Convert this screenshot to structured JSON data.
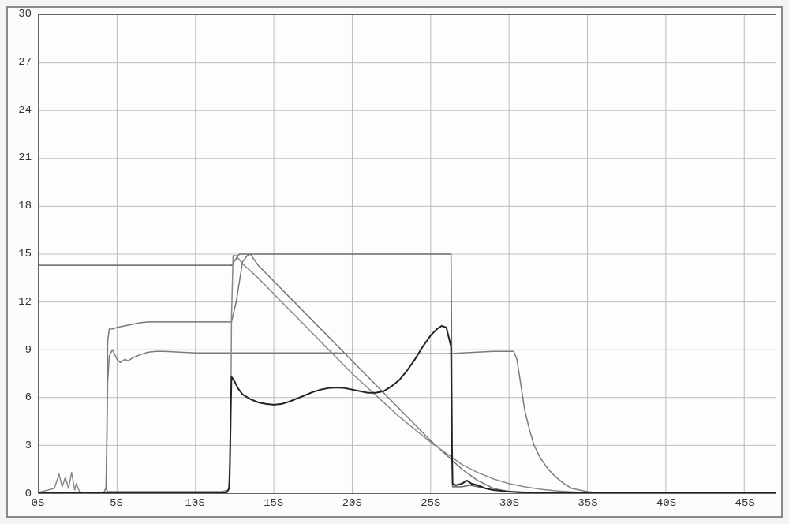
{
  "chart": {
    "type": "line",
    "background_color": "#fdfdfd",
    "outer_border_color": "#888888",
    "plot_border_color": "#666666",
    "grid_color": "#bbbbbb",
    "tick_font_family": "Courier New",
    "tick_fontsize": 14,
    "tick_color": "#333333",
    "xlim": [
      0,
      47
    ],
    "ylim": [
      0,
      30
    ],
    "yticks": [
      0,
      3,
      6,
      9,
      12,
      15,
      18,
      21,
      24,
      27,
      30
    ],
    "ytick_labels": [
      "0",
      "3",
      "6",
      "9",
      "12",
      "15",
      "18",
      "21",
      "24",
      "27",
      "30"
    ],
    "xticks": [
      0,
      5,
      10,
      15,
      20,
      25,
      30,
      35,
      40,
      45
    ],
    "xtick_labels": [
      "0S",
      "5S",
      "10S",
      "15S",
      "20S",
      "25S",
      "30S",
      "35S",
      "40S",
      "45S"
    ],
    "xtick_draws_grid": [
      false,
      true,
      true,
      true,
      true,
      true,
      true,
      true,
      true,
      true
    ],
    "series": [
      {
        "name": "line-flat-top",
        "color": "#666666",
        "width": 1.5,
        "points": [
          [
            0,
            14.3
          ],
          [
            1,
            14.3
          ],
          [
            2,
            14.3
          ],
          [
            3,
            14.3
          ],
          [
            4,
            14.3
          ],
          [
            5,
            14.3
          ],
          [
            6,
            14.3
          ],
          [
            7,
            14.3
          ],
          [
            8,
            14.3
          ],
          [
            9,
            14.3
          ],
          [
            10,
            14.3
          ],
          [
            11,
            14.3
          ],
          [
            11.5,
            14.3
          ],
          [
            12,
            14.3
          ],
          [
            12.3,
            14.3
          ],
          [
            12.8,
            15.0
          ],
          [
            13,
            15.0
          ],
          [
            14,
            15.0
          ],
          [
            15,
            15.0
          ],
          [
            16,
            15.0
          ],
          [
            17,
            15.0
          ],
          [
            18,
            15.0
          ],
          [
            19,
            15.0
          ],
          [
            20,
            15.0
          ],
          [
            21,
            15.0
          ],
          [
            22,
            15.0
          ],
          [
            23,
            15.0
          ],
          [
            24,
            15.0
          ],
          [
            25,
            15.0
          ],
          [
            25.8,
            15.0
          ],
          [
            26.3,
            15.0
          ],
          [
            26.4,
            0.4
          ],
          [
            27,
            0.4
          ],
          [
            27.5,
            0.5
          ],
          [
            28,
            0.4
          ],
          [
            28.5,
            0.3
          ],
          [
            29,
            0.2
          ],
          [
            30,
            0.1
          ],
          [
            31,
            0.05
          ],
          [
            32,
            0.02
          ],
          [
            33,
            0.0
          ],
          [
            35,
            0.0
          ],
          [
            40,
            0.0
          ],
          [
            47,
            0.0
          ]
        ]
      },
      {
        "name": "line-ramp-mid",
        "color": "#777777",
        "width": 1.5,
        "points": [
          [
            0,
            0
          ],
          [
            4,
            0
          ],
          [
            4.2,
            0.1
          ],
          [
            4.3,
            0.4
          ],
          [
            4.35,
            4.0
          ],
          [
            4.4,
            9.5
          ],
          [
            4.5,
            10.3
          ],
          [
            4.7,
            10.3
          ],
          [
            5,
            10.4
          ],
          [
            5.5,
            10.5
          ],
          [
            6,
            10.6
          ],
          [
            6.5,
            10.7
          ],
          [
            7,
            10.75
          ],
          [
            8,
            10.75
          ],
          [
            9,
            10.75
          ],
          [
            10,
            10.75
          ],
          [
            11,
            10.75
          ],
          [
            11.5,
            10.75
          ],
          [
            12,
            10.75
          ],
          [
            12.3,
            10.75
          ],
          [
            12.6,
            12.0
          ],
          [
            13.0,
            14.5
          ],
          [
            13.3,
            14.9
          ],
          [
            13.5,
            15.0
          ],
          [
            14,
            14.3
          ],
          [
            15,
            13.3
          ],
          [
            16,
            12.3
          ],
          [
            17,
            11.3
          ],
          [
            18,
            10.3
          ],
          [
            19,
            9.3
          ],
          [
            20,
            8.3
          ],
          [
            21,
            7.3
          ],
          [
            22,
            6.3
          ],
          [
            23,
            5.3
          ],
          [
            24,
            4.3
          ],
          [
            25,
            3.3
          ],
          [
            26,
            2.4
          ],
          [
            27,
            1.5
          ],
          [
            28,
            0.8
          ],
          [
            29,
            0.3
          ],
          [
            30,
            0.1
          ],
          [
            31,
            0.0
          ],
          [
            32,
            0.0
          ],
          [
            35,
            0.0
          ],
          [
            40,
            0.0
          ],
          [
            47,
            0.0
          ]
        ]
      },
      {
        "name": "line-flat-nine",
        "color": "#7a7a7a",
        "width": 1.5,
        "points": [
          [
            0,
            0
          ],
          [
            4,
            0
          ],
          [
            4.2,
            0.1
          ],
          [
            4.3,
            0.4
          ],
          [
            4.35,
            3.0
          ],
          [
            4.4,
            7.0
          ],
          [
            4.5,
            8.6
          ],
          [
            4.7,
            9.0
          ],
          [
            5,
            8.4
          ],
          [
            5.2,
            8.2
          ],
          [
            5.5,
            8.4
          ],
          [
            5.7,
            8.3
          ],
          [
            6,
            8.5
          ],
          [
            6.5,
            8.7
          ],
          [
            7,
            8.85
          ],
          [
            7.5,
            8.9
          ],
          [
            8,
            8.9
          ],
          [
            9,
            8.85
          ],
          [
            10,
            8.8
          ],
          [
            11,
            8.8
          ],
          [
            12,
            8.8
          ],
          [
            13,
            8.8
          ],
          [
            14,
            8.8
          ],
          [
            15,
            8.8
          ],
          [
            16,
            8.8
          ],
          [
            17,
            8.8
          ],
          [
            18,
            8.8
          ],
          [
            19,
            8.8
          ],
          [
            20,
            8.75
          ],
          [
            21,
            8.75
          ],
          [
            22,
            8.75
          ],
          [
            23,
            8.75
          ],
          [
            24,
            8.75
          ],
          [
            25,
            8.75
          ],
          [
            26,
            8.75
          ],
          [
            27,
            8.8
          ],
          [
            28,
            8.85
          ],
          [
            29,
            8.9
          ],
          [
            29.5,
            8.9
          ],
          [
            30,
            8.9
          ],
          [
            30.3,
            8.9
          ],
          [
            30.5,
            8.4
          ],
          [
            30.8,
            6.5
          ],
          [
            31,
            5.2
          ],
          [
            31.3,
            4.0
          ],
          [
            31.6,
            3.0
          ],
          [
            32,
            2.2
          ],
          [
            32.5,
            1.5
          ],
          [
            33,
            1.0
          ],
          [
            33.5,
            0.6
          ],
          [
            34,
            0.3
          ],
          [
            35,
            0.1
          ],
          [
            36,
            0.0
          ],
          [
            40,
            0.0
          ],
          [
            47,
            0.0
          ]
        ]
      },
      {
        "name": "line-decay-long",
        "color": "#888888",
        "width": 1.5,
        "points": [
          [
            0,
            0.05
          ],
          [
            1,
            0.3
          ],
          [
            1.3,
            1.2
          ],
          [
            1.5,
            0.4
          ],
          [
            1.7,
            1.0
          ],
          [
            1.9,
            0.3
          ],
          [
            2.1,
            1.3
          ],
          [
            2.3,
            0.2
          ],
          [
            2.4,
            0.6
          ],
          [
            2.6,
            0.1
          ],
          [
            3,
            0.0
          ],
          [
            4,
            0
          ],
          [
            4.2,
            0.1
          ],
          [
            4.3,
            0.3
          ],
          [
            4.4,
            0.1
          ],
          [
            5,
            0.1
          ],
          [
            8,
            0.1
          ],
          [
            11,
            0.1
          ],
          [
            11.7,
            0.1
          ],
          [
            12.1,
            0.2
          ],
          [
            12.2,
            1.0
          ],
          [
            12.25,
            4.0
          ],
          [
            12.3,
            11.0
          ],
          [
            12.4,
            14.9
          ],
          [
            12.5,
            14.9
          ],
          [
            12.6,
            14.9
          ],
          [
            13,
            14.4
          ],
          [
            14,
            13.5
          ],
          [
            15,
            12.5
          ],
          [
            16,
            11.5
          ],
          [
            17,
            10.5
          ],
          [
            18,
            9.5
          ],
          [
            19,
            8.5
          ],
          [
            20,
            7.5
          ],
          [
            21,
            6.6
          ],
          [
            22,
            5.7
          ],
          [
            23,
            4.8
          ],
          [
            24,
            4.0
          ],
          [
            25,
            3.2
          ],
          [
            26,
            2.5
          ],
          [
            27,
            1.8
          ],
          [
            28,
            1.3
          ],
          [
            29,
            0.9
          ],
          [
            30,
            0.6
          ],
          [
            31,
            0.4
          ],
          [
            32,
            0.25
          ],
          [
            33,
            0.15
          ],
          [
            34,
            0.08
          ],
          [
            35,
            0.04
          ],
          [
            36,
            0.0
          ],
          [
            40,
            0.0
          ],
          [
            47,
            0.0
          ]
        ]
      },
      {
        "name": "line-dark-burst",
        "color": "#222222",
        "width": 2,
        "points": [
          [
            0,
            0
          ],
          [
            5,
            0
          ],
          [
            11.7,
            0
          ],
          [
            12.0,
            0.05
          ],
          [
            12.15,
            0.3
          ],
          [
            12.2,
            2.0
          ],
          [
            12.25,
            5.0
          ],
          [
            12.3,
            7.3
          ],
          [
            12.5,
            7.0
          ],
          [
            12.7,
            6.6
          ],
          [
            13,
            6.2
          ],
          [
            13.5,
            5.9
          ],
          [
            14,
            5.7
          ],
          [
            14.5,
            5.6
          ],
          [
            15,
            5.55
          ],
          [
            15.5,
            5.6
          ],
          [
            16,
            5.75
          ],
          [
            16.5,
            5.95
          ],
          [
            17,
            6.15
          ],
          [
            17.5,
            6.35
          ],
          [
            18,
            6.5
          ],
          [
            18.5,
            6.6
          ],
          [
            19,
            6.63
          ],
          [
            19.5,
            6.6
          ],
          [
            20,
            6.5
          ],
          [
            20.5,
            6.4
          ],
          [
            21,
            6.3
          ],
          [
            21.5,
            6.3
          ],
          [
            22,
            6.4
          ],
          [
            22.5,
            6.7
          ],
          [
            23,
            7.1
          ],
          [
            23.5,
            7.7
          ],
          [
            24,
            8.4
          ],
          [
            24.5,
            9.2
          ],
          [
            25,
            9.9
          ],
          [
            25.4,
            10.3
          ],
          [
            25.7,
            10.5
          ],
          [
            26,
            10.4
          ],
          [
            26.3,
            9.2
          ],
          [
            26.35,
            3.0
          ],
          [
            26.4,
            0.6
          ],
          [
            26.6,
            0.5
          ],
          [
            27,
            0.6
          ],
          [
            27.3,
            0.8
          ],
          [
            27.6,
            0.6
          ],
          [
            28,
            0.5
          ],
          [
            28.5,
            0.3
          ],
          [
            29,
            0.2
          ],
          [
            30,
            0.1
          ],
          [
            31,
            0.05
          ],
          [
            32,
            0.0
          ],
          [
            35,
            0.0
          ],
          [
            40,
            0.0
          ],
          [
            47,
            0.0
          ]
        ]
      }
    ]
  }
}
